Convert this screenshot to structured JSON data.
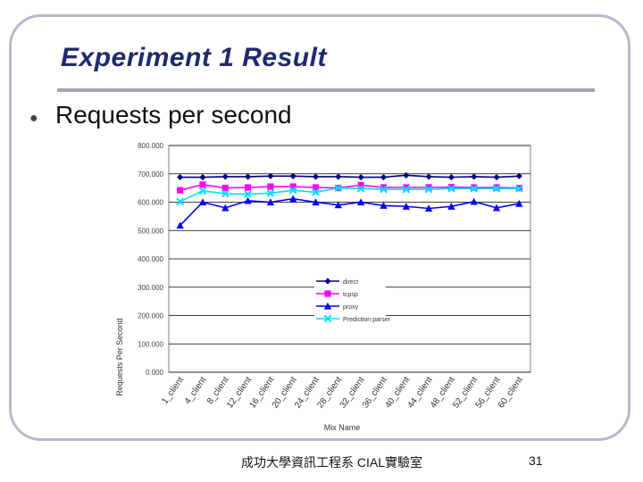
{
  "slide": {
    "title": "Experiment 1 Result",
    "bullet_text": "Requests per second",
    "footer": "成功大學資訊工程系 CIAL實驗室",
    "page_number": "31"
  },
  "chart_data": {
    "type": "line",
    "xlabel": "Mix Name",
    "ylabel": "Requests Per Second",
    "ylim": [
      0,
      800
    ],
    "yticks": [
      "0.000",
      "100.000",
      "200.000",
      "300.000",
      "400.000",
      "500.000",
      "600.000",
      "700.000",
      "800.000"
    ],
    "grid": "horizontal",
    "legend_position": "center-right",
    "categories": [
      "1_client",
      "4_client",
      "8_client",
      "12_client",
      "16_client",
      "20_client",
      "24_client",
      "28_client",
      "32_client",
      "36_client",
      "40_client",
      "44_client",
      "48_client",
      "52_client",
      "56_client",
      "60_client"
    ],
    "x_tick_labels": [
      "1_client",
      "4_client",
      "8_client",
      "12_client",
      "16_client",
      "20_client",
      "24_client",
      "28_client",
      "32_client",
      "36_client",
      "40_client",
      "44_client",
      "48_client",
      "52_client",
      "56_client",
      "60_client"
    ],
    "series": [
      {
        "name": "direct",
        "color": "#000080",
        "marker": "diamond",
        "values": [
          688,
          688,
          690,
          690,
          692,
          692,
          690,
          690,
          688,
          688,
          695,
          690,
          688,
          690,
          688,
          692
        ]
      },
      {
        "name": "tcpsp",
        "color": "#ff00ff",
        "marker": "square",
        "values": [
          642,
          662,
          650,
          652,
          655,
          655,
          652,
          650,
          660,
          652,
          652,
          652,
          653,
          652,
          652,
          650
        ]
      },
      {
        "name": "proxy",
        "color": "#0000ff",
        "marker": "triangle",
        "values": [
          518,
          600,
          580,
          605,
          600,
          612,
          600,
          590,
          600,
          588,
          585,
          578,
          585,
          602,
          580,
          595
        ]
      },
      {
        "name": "Prediction parser",
        "color": "#00e0ff",
        "marker": "x",
        "values": [
          602,
          640,
          630,
          628,
          632,
          642,
          635,
          650,
          648,
          645,
          645,
          645,
          648,
          648,
          648,
          648
        ]
      }
    ]
  }
}
